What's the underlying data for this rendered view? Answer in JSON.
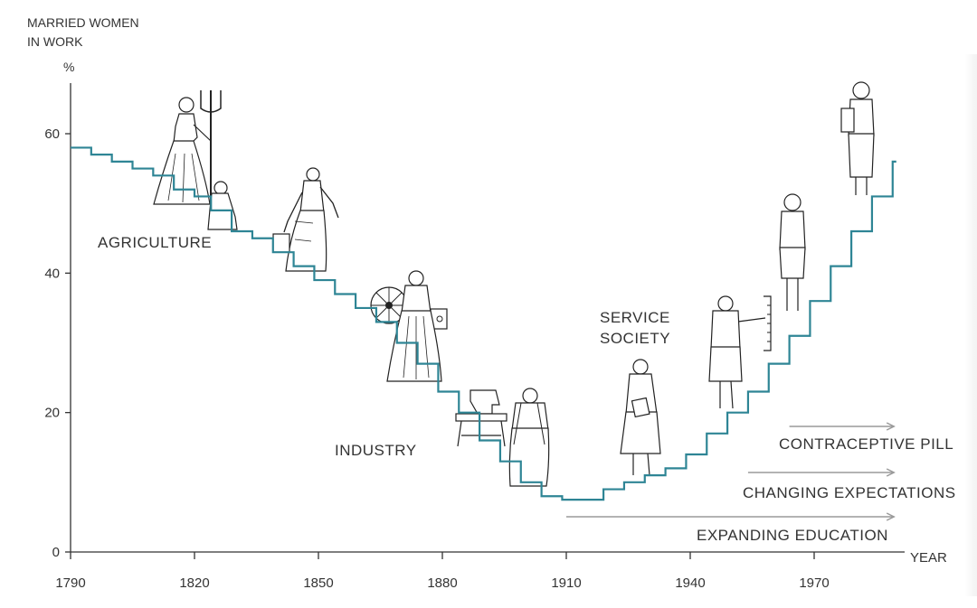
{
  "chart_data": {
    "type": "line",
    "step": true,
    "ylabel_lines": [
      "MARRIED WOMEN",
      "IN WORK"
    ],
    "yunit": "%",
    "xlabel": "YEAR",
    "xlim": [
      1790,
      1990
    ],
    "ylim": [
      0,
      70
    ],
    "yticks": [
      0,
      20,
      40,
      60
    ],
    "xticks": [
      1790,
      1820,
      1850,
      1880,
      1910,
      1940,
      1970
    ],
    "series": [
      {
        "color": "#2e8595",
        "x": [
          1790,
          1795,
          1800,
          1805,
          1810,
          1815,
          1820,
          1824,
          1829,
          1834,
          1839,
          1844,
          1849,
          1854,
          1859,
          1864,
          1869,
          1874,
          1879,
          1884,
          1889,
          1894,
          1899,
          1904,
          1909,
          1914,
          1919,
          1924,
          1929,
          1934,
          1939,
          1944,
          1949,
          1954,
          1959,
          1964,
          1969,
          1974,
          1979,
          1984,
          1989
        ],
        "y": [
          58,
          57,
          56,
          55,
          54,
          52,
          51,
          49,
          46,
          45,
          43,
          41,
          39,
          37,
          35,
          33,
          30,
          27,
          23,
          20,
          16,
          13,
          10,
          8,
          7.5,
          7.5,
          9,
          10,
          11,
          12,
          14,
          17,
          20,
          23,
          27,
          31,
          36,
          41,
          46,
          51,
          56
        ]
      }
    ],
    "annotations": {
      "eras": [
        "AGRICULTURE",
        "INDUSTRY",
        "SERVICE",
        "SOCIETY"
      ],
      "trends": [
        {
          "label": "CONTRACEPTIVE PILL",
          "from": 1964,
          "to": 1988
        },
        {
          "label": "CHANGING EXPECTATIONS",
          "from": 1954,
          "to": 1988
        },
        {
          "label": "EXPANDING EDUCATION",
          "from": 1910,
          "to": 1988
        }
      ]
    }
  },
  "icons": [
    "woman-with-pitchfork-icon",
    "child-icon",
    "woman-with-bucket-icon",
    "spinning-wheel-icon",
    "woman-in-apron-icon",
    "sewing-machine-icon",
    "woman-with-shawl-icon",
    "woman-with-book-icon",
    "woman-teacher-icon",
    "woman-in-suit-icon",
    "woman-with-bag-icon"
  ]
}
